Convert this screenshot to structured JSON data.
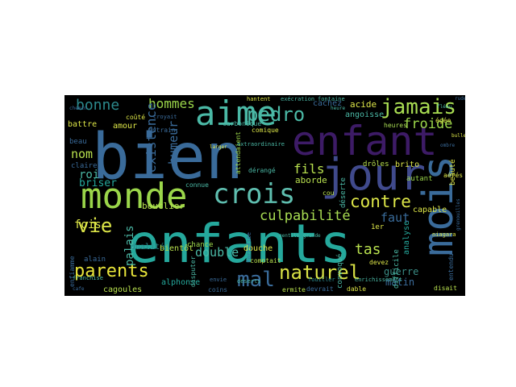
{
  "figure": {
    "background": "#000000",
    "words": [
      {
        "text": "bien",
        "color": "#3a6b9a"
      },
      {
        "text": "enfants",
        "color": "#25a89c"
      },
      {
        "text": "enfant",
        "color": "#3d1b66"
      },
      {
        "text": "monde",
        "color": "#9bd64a"
      },
      {
        "text": "aime",
        "color": "#4bb9a6"
      },
      {
        "text": "jour",
        "color": "#404a8c"
      },
      {
        "text": "mois",
        "color": "#3a6b9a"
      },
      {
        "text": "crois",
        "color": "#5fbfb0"
      },
      {
        "text": "pedro",
        "color": "#4bb9a6"
      },
      {
        "text": "jamais",
        "color": "#a8dc52"
      },
      {
        "text": "naturel",
        "color": "#d9e245"
      },
      {
        "text": "parents",
        "color": "#e8e43a"
      },
      {
        "text": "mal",
        "color": "#3a6b9a"
      },
      {
        "text": "vie",
        "color": "#dde648"
      },
      {
        "text": "bonne",
        "color": "#2c8a8d"
      },
      {
        "text": "hommes",
        "color": "#9bd64a"
      },
      {
        "text": "culpabilité",
        "color": "#a8dc52"
      },
      {
        "text": "contre",
        "color": "#dde648"
      },
      {
        "text": "froide",
        "color": "#9bd64a"
      },
      {
        "text": "fils",
        "color": "#b8e04e"
      },
      {
        "text": "faut",
        "color": "#3a6b9a"
      },
      {
        "text": "fois",
        "color": "#dde648"
      },
      {
        "text": "nom",
        "color": "#b8e04e"
      },
      {
        "text": "double",
        "color": "#4bb9a6"
      },
      {
        "text": "existence",
        "color": "#3a6b9a"
      },
      {
        "text": "humeur",
        "color": "#3a6b9a"
      },
      {
        "text": "palais",
        "color": "#4bb9a6"
      },
      {
        "text": "tas",
        "color": "#b8e04e"
      },
      {
        "text": "guerre",
        "color": "#3a8c85"
      },
      {
        "text": "matin",
        "color": "#3a6b9a"
      },
      {
        "text": "roi",
        "color": "#4bb9a6"
      },
      {
        "text": "briser",
        "color": "#25a89c"
      },
      {
        "text": "bouclier",
        "color": "#b8e04e"
      },
      {
        "text": "alphonse",
        "color": "#25a89c"
      },
      {
        "text": "cagoules",
        "color": "#b8e04e"
      },
      {
        "text": "dualité",
        "color": "#2c8a8d"
      },
      {
        "text": "bientôt",
        "color": "#b8e04e"
      },
      {
        "text": "chance",
        "color": "#9bd64a"
      },
      {
        "text": "douche",
        "color": "#dde648"
      },
      {
        "text": "angoisse",
        "color": "#4bb9a6"
      },
      {
        "text": "acide",
        "color": "#dde648"
      },
      {
        "text": "cachez",
        "color": "#3a6b9a"
      },
      {
        "text": "amour",
        "color": "#dde648"
      },
      {
        "text": "battre",
        "color": "#dde648"
      },
      {
        "text": "beau",
        "color": "#3a6b9a"
      },
      {
        "text": "claire",
        "color": "#3a6b9a"
      },
      {
        "text": "alain",
        "color": "#3a6b9a"
      },
      {
        "text": "capable",
        "color": "#dde648"
      },
      {
        "text": "analyse",
        "color": "#25a89c"
      },
      {
        "text": "aborde",
        "color": "#b8e04e"
      },
      {
        "text": "déserte",
        "color": "#4bb9a6"
      },
      {
        "text": "brito",
        "color": "#dde648"
      },
      {
        "text": "drôles",
        "color": "#b8e04e"
      },
      {
        "text": "autant",
        "color": "#9bd64a"
      },
      {
        "text": "heures",
        "color": "#a8dc52"
      },
      {
        "text": "beauté",
        "color": "#dde648"
      },
      {
        "text": "devez",
        "color": "#dde648"
      },
      {
        "text": "convoqué",
        "color": "#4bb9a6"
      },
      {
        "text": "difficile",
        "color": "#4bb9a6"
      },
      {
        "text": "entendu",
        "color": "#3a6b9a"
      },
      {
        "text": "disait",
        "color": "#b8e04e"
      },
      {
        "text": "dable",
        "color": "#dde648"
      },
      {
        "text": "ermite",
        "color": "#b8e04e"
      },
      {
        "text": "devrait",
        "color": "#3a6b9a"
      },
      {
        "text": "enfiamme",
        "color": "#3a6b9a"
      },
      {
        "text": "coins",
        "color": "#3a6b9a"
      },
      {
        "text": "disputer",
        "color": "#4bb9a6"
      },
      {
        "text": "dérangé",
        "color": "#4bb9a6"
      },
      {
        "text": "attendaient",
        "color": "#9bd64a"
      },
      {
        "text": "connue",
        "color": "#4bb9a6"
      },
      {
        "text": "carbonique",
        "color": "#4bb9a6"
      },
      {
        "text": "comique",
        "color": "#dde648"
      },
      {
        "text": "entrain",
        "color": "#3a6b9a"
      },
      {
        "text": "coûté",
        "color": "#dde648"
      },
      {
        "text": "égée",
        "color": "#dde648"
      },
      {
        "text": "aérés",
        "color": "#dde648"
      },
      {
        "text": "1er",
        "color": "#dde648"
      },
      {
        "text": "cou",
        "color": "#b8e04e"
      },
      {
        "text": "enrichissement",
        "color": "#4bb9a6"
      },
      {
        "text": "déserts",
        "color": "#4bb9a6"
      },
      {
        "text": "comptait",
        "color": "#b8e04e"
      },
      {
        "text": "envie",
        "color": "#3a6b9a"
      },
      {
        "text": "extraordinaire",
        "color": "#4bb9a6"
      },
      {
        "text": "fortifiée",
        "color": "#3a6b9a"
      },
      {
        "text": "hantent",
        "color": "#dde648"
      },
      {
        "text": "exécration",
        "color": "#4bb9a6"
      },
      {
        "text": "fontaine",
        "color": "#4bb9a6"
      },
      {
        "text": "franchise",
        "color": "#4bb9a6"
      },
      {
        "text": "croyait",
        "color": "#3a6b9a"
      },
      {
        "text": "fouiller",
        "color": "#2c8a8d"
      },
      {
        "text": "grenouilles",
        "color": "#3a6b9a"
      },
      {
        "text": "niagara",
        "color": "#dde648"
      },
      {
        "text": "ombre",
        "color": "#3a6b9a"
      },
      {
        "text": "bulle",
        "color": "#dde648"
      },
      {
        "text": "rude",
        "color": "#3a6b9a"
      },
      {
        "text": "fléau",
        "color": "#4bb9a6"
      },
      {
        "text": "gentils",
        "color": "#4bb9a6"
      },
      {
        "text": "heure",
        "color": "#4bb9a6"
      },
      {
        "text": "larger",
        "color": "#dde648"
      },
      {
        "text": "grande",
        "color": "#4bb9a6"
      },
      {
        "text": "cafe",
        "color": "#3a6b9a"
      },
      {
        "text": "chemin",
        "color": "#3a6b9a"
      }
    ]
  }
}
